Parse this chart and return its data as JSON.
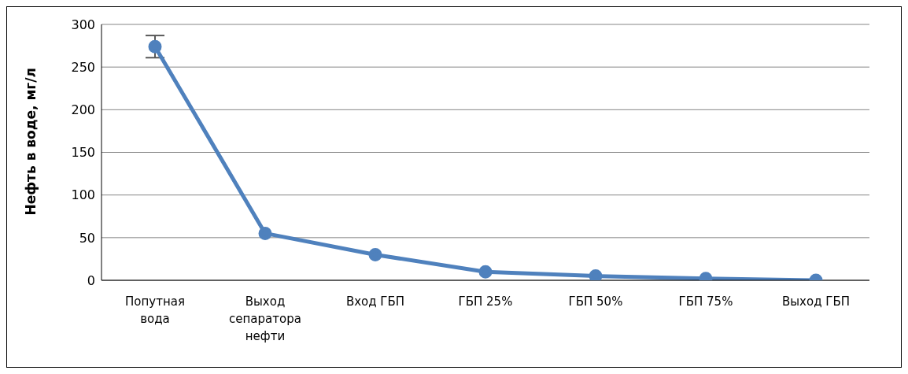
{
  "chart_data": {
    "type": "line",
    "ylabel": "Нефть в воде, мг/л",
    "categories": [
      "Попутная вода",
      "Выход сепаратора нефти",
      "Вход ГБП",
      "ГБП 25%",
      "ГБП 50%",
      "ГБП 75%",
      "Выход ГБП"
    ],
    "series": [
      {
        "color": "#4f81bd",
        "values": [
          274,
          55,
          30,
          10,
          5,
          2,
          0
        ],
        "errors": [
          13,
          null,
          null,
          null,
          null,
          null,
          null
        ]
      }
    ],
    "ylim": [
      0,
      300
    ],
    "yticks": [
      0,
      50,
      100,
      150,
      200,
      250,
      300
    ],
    "grid": "y",
    "legend": false,
    "marker": "circle",
    "line_style": "solid"
  }
}
